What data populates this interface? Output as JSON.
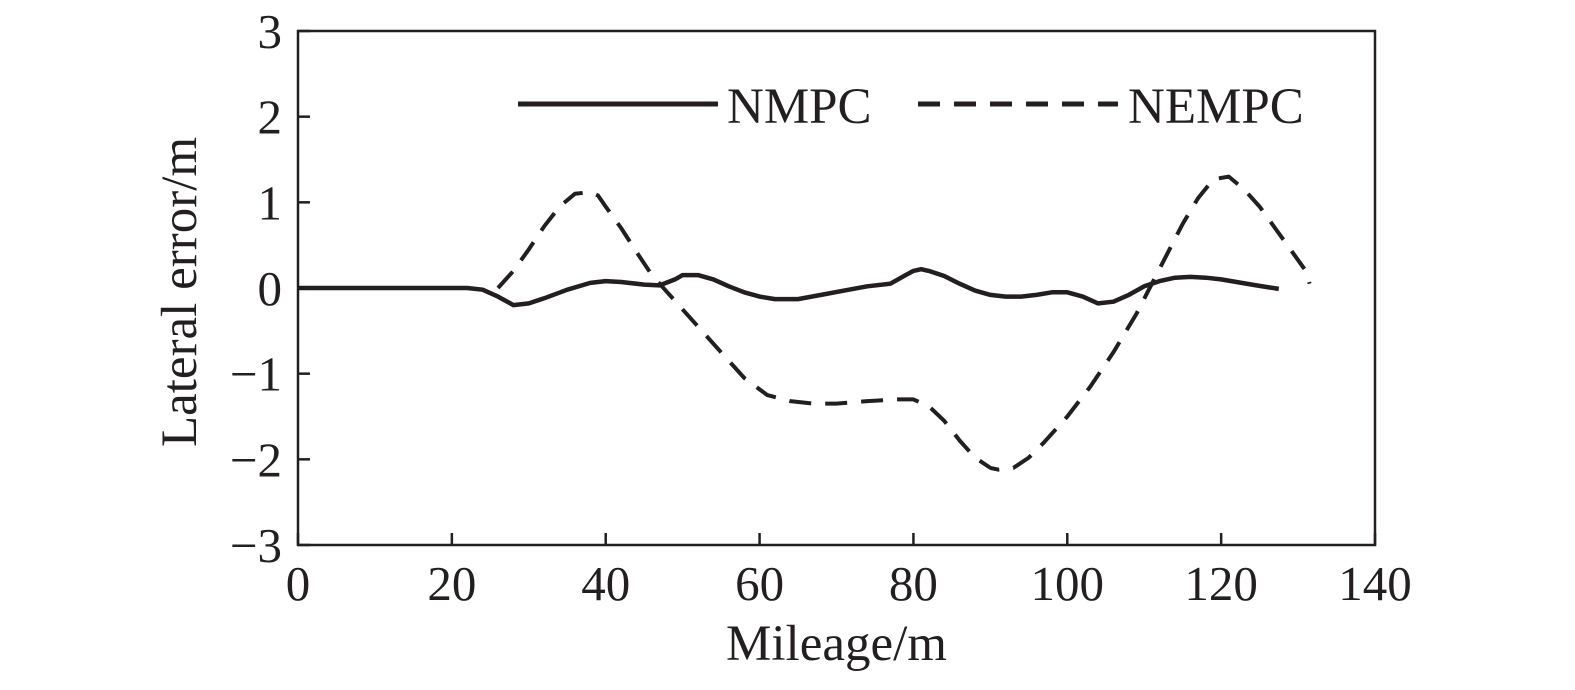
{
  "chart_data": {
    "type": "line",
    "title": "",
    "xlabel": "Mileage/m",
    "ylabel": "Lateral error/m",
    "xlim": [
      0,
      140
    ],
    "ylim": [
      -3,
      3
    ],
    "x_ticks": [
      0,
      20,
      40,
      60,
      80,
      100,
      120,
      140
    ],
    "y_ticks": [
      -3,
      -2,
      -1,
      0,
      1,
      2,
      3
    ],
    "x_tick_labels": [
      "0",
      "20",
      "40",
      "60",
      "80",
      "100",
      "120",
      "140"
    ],
    "y_tick_labels": [
      "−3",
      "−2",
      "−1",
      "0",
      "1",
      "2",
      "3"
    ],
    "grid": false,
    "legend_position": "top-right",
    "series": [
      {
        "name": "NMPC",
        "style": "solid",
        "color": "#231f20",
        "x": [
          0,
          10,
          20,
          22,
          24,
          26,
          28,
          30,
          32,
          35,
          38,
          40,
          42,
          45,
          47,
          49,
          50,
          52,
          54,
          56,
          58,
          60,
          62,
          65,
          68,
          71,
          74,
          77,
          79,
          80,
          81,
          82,
          84,
          86,
          88,
          90,
          92,
          94,
          96,
          98,
          100,
          102,
          104,
          106,
          108,
          110,
          112,
          114,
          116,
          118,
          120,
          122,
          124,
          126,
          127.5
        ],
        "y": [
          0,
          0,
          0,
          0,
          -0.02,
          -0.1,
          -0.2,
          -0.18,
          -0.12,
          -0.02,
          0.06,
          0.08,
          0.07,
          0.04,
          0.03,
          0.1,
          0.15,
          0.15,
          0.1,
          0.02,
          -0.05,
          -0.1,
          -0.13,
          -0.13,
          -0.08,
          -0.03,
          0.02,
          0.05,
          0.15,
          0.2,
          0.22,
          0.2,
          0.14,
          0.05,
          -0.03,
          -0.08,
          -0.1,
          -0.1,
          -0.08,
          -0.05,
          -0.05,
          -0.1,
          -0.18,
          -0.16,
          -0.08,
          0.02,
          0.08,
          0.12,
          0.13,
          0.12,
          0.1,
          0.07,
          0.04,
          0.01,
          -0.01
        ]
      },
      {
        "name": "NEMPC",
        "style": "dashed",
        "color": "#231f20",
        "x": [
          26,
          28,
          30,
          32,
          34,
          36,
          38,
          39,
          40,
          42,
          44,
          46,
          48,
          50,
          52,
          55,
          58,
          61,
          64,
          67,
          70,
          74,
          78,
          80,
          82,
          84,
          86,
          88,
          90,
          91,
          93,
          95,
          97,
          100,
          103,
          106,
          109,
          111,
          113,
          115,
          117,
          119,
          121,
          123,
          125,
          127,
          129,
          131,
          131.5
        ],
        "y": [
          0,
          0.2,
          0.45,
          0.72,
          0.95,
          1.1,
          1.12,
          1.08,
          0.95,
          0.7,
          0.42,
          0.15,
          -0.05,
          -0.25,
          -0.45,
          -0.75,
          -1.05,
          -1.25,
          -1.32,
          -1.35,
          -1.35,
          -1.32,
          -1.3,
          -1.3,
          -1.38,
          -1.55,
          -1.78,
          -1.98,
          -2.1,
          -2.12,
          -2.1,
          -1.98,
          -1.8,
          -1.5,
          -1.15,
          -0.75,
          -0.3,
          0.05,
          0.4,
          0.75,
          1.05,
          1.27,
          1.3,
          1.15,
          0.95,
          0.7,
          0.45,
          0.2,
          0.05
        ]
      }
    ]
  }
}
